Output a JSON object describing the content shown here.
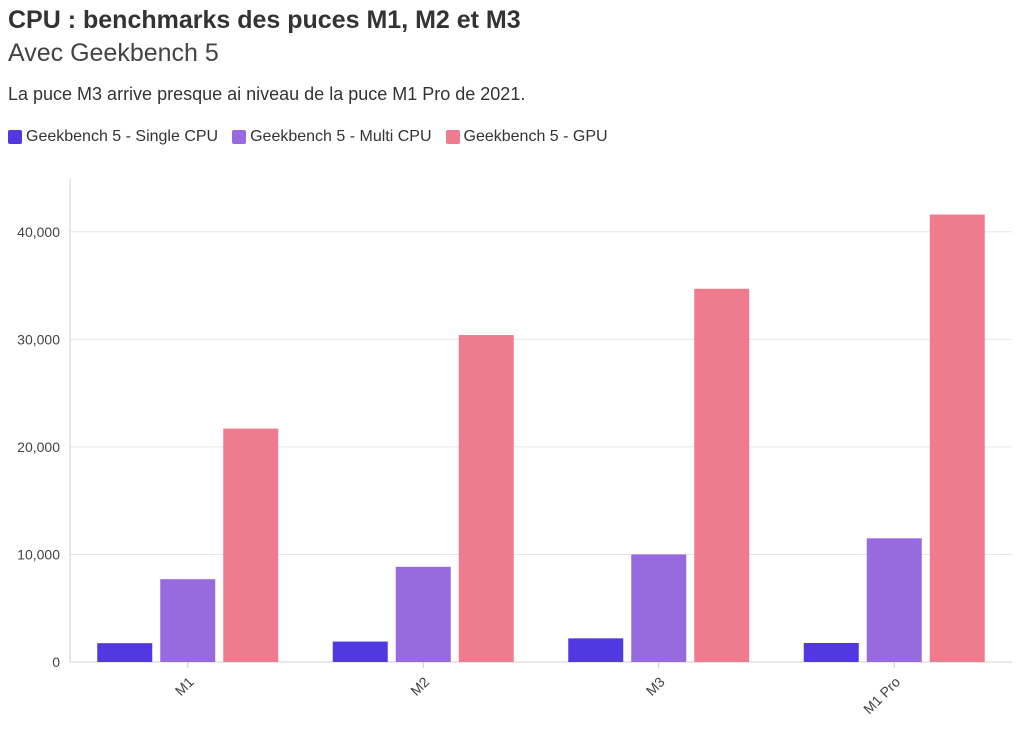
{
  "title": "CPU : benchmarks des puces M1, M2 et M3",
  "subtitle": "Avec Geekbench 5",
  "description": "La puce M3 arrive presque ai niveau de la puce M1 Pro de 2021.",
  "chart_data": {
    "type": "bar",
    "categories": [
      "M1",
      "M2",
      "M3",
      "M1 Pro"
    ],
    "series": [
      {
        "name": "Geekbench 5 - Single CPU",
        "color": "#5138e0",
        "values": [
          1750,
          1900,
          2200,
          1770
        ]
      },
      {
        "name": "Geekbench 5 - Multi CPU",
        "color": "#976ae0",
        "values": [
          7700,
          8850,
          10000,
          11500
        ]
      },
      {
        "name": "Geekbench 5 - GPU",
        "color": "#ef7b8e",
        "values": [
          21700,
          30400,
          34700,
          41600
        ]
      }
    ],
    "y_ticks": [
      0,
      10000,
      20000,
      30000,
      40000
    ],
    "y_tick_labels": [
      "0",
      "10,000",
      "20,000",
      "30,000",
      "40,000"
    ],
    "ylim": [
      0,
      45000
    ],
    "grid": true,
    "legend_position": "top-left",
    "x_tick_rotation": "diagonal"
  }
}
